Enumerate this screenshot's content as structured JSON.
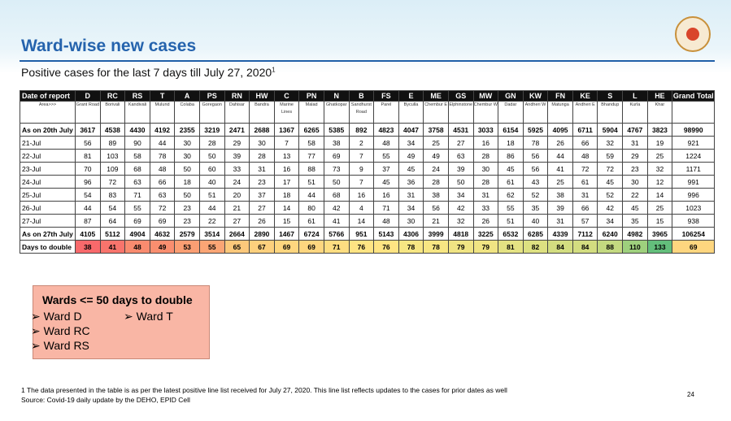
{
  "title": "Ward-wise new cases",
  "subtitle": "Positive cases for the last 7 days till July 27, 2020",
  "subtitle_note": "1",
  "table": {
    "header": [
      "Date of report",
      "D",
      "RC",
      "RS",
      "T",
      "A",
      "PS",
      "RN",
      "HW",
      "C",
      "PN",
      "N",
      "B",
      "FS",
      "E",
      "ME",
      "GS",
      "MW",
      "GN",
      "KW",
      "FN",
      "KE",
      "S",
      "L",
      "HE",
      "Grand Total"
    ],
    "areas": [
      "Area>>>",
      "Grant Road",
      "Borivali",
      "Kandivali",
      "Mulund",
      "Colaba",
      "Goregaon",
      "Dahisar",
      "Bandra",
      "Marine Lines",
      "Malad",
      "Ghatkopar",
      "Sandhurst Road",
      "Parel",
      "Byculla",
      "Chembur E",
      "Elphinstone",
      "Chembur W",
      "Dadar",
      "Andheri W",
      "Matunga",
      "Andheri E",
      "Bhandup",
      "Kurla",
      "Khar"
    ],
    "rows": [
      {
        "label": "As on 20th July",
        "values": [
          3617,
          4538,
          4430,
          4192,
          2355,
          3219,
          2471,
          2688,
          1367,
          6265,
          5385,
          892,
          4823,
          4047,
          3758,
          4531,
          3033,
          6154,
          5925,
          4095,
          6711,
          5904,
          4767,
          3823,
          98990
        ]
      },
      {
        "label": "21-Jul",
        "values": [
          56,
          89,
          90,
          44,
          30,
          28,
          29,
          30,
          7,
          58,
          38,
          2,
          48,
          34,
          25,
          27,
          16,
          18,
          78,
          26,
          66,
          32,
          31,
          19,
          921
        ]
      },
      {
        "label": "22-Jul",
        "values": [
          81,
          103,
          58,
          78,
          30,
          50,
          39,
          28,
          13,
          77,
          69,
          7,
          55,
          49,
          49,
          63,
          28,
          86,
          56,
          44,
          48,
          59,
          29,
          25,
          1224
        ]
      },
      {
        "label": "23-Jul",
        "values": [
          70,
          109,
          68,
          48,
          50,
          60,
          33,
          31,
          16,
          88,
          73,
          9,
          37,
          45,
          24,
          39,
          30,
          45,
          56,
          41,
          72,
          72,
          23,
          32,
          1171
        ]
      },
      {
        "label": "24-Jul",
        "values": [
          96,
          72,
          63,
          66,
          18,
          40,
          24,
          23,
          17,
          51,
          50,
          7,
          45,
          36,
          28,
          50,
          28,
          61,
          43,
          25,
          61,
          45,
          30,
          12,
          991
        ]
      },
      {
        "label": "25-Jul",
        "values": [
          54,
          83,
          71,
          63,
          50,
          51,
          20,
          37,
          18,
          44,
          68,
          16,
          16,
          31,
          38,
          34,
          31,
          62,
          52,
          38,
          31,
          52,
          22,
          14,
          996
        ]
      },
      {
        "label": "26-Jul",
        "values": [
          44,
          54,
          55,
          72,
          23,
          44,
          21,
          27,
          14,
          80,
          42,
          4,
          71,
          34,
          56,
          42,
          33,
          55,
          35,
          39,
          66,
          42,
          45,
          25,
          1023
        ]
      },
      {
        "label": "27-Jul",
        "values": [
          87,
          64,
          69,
          69,
          23,
          22,
          27,
          26,
          15,
          61,
          41,
          14,
          48,
          30,
          21,
          32,
          26,
          51,
          40,
          31,
          57,
          34,
          35,
          15,
          938
        ]
      },
      {
        "label": "As on 27th July",
        "values": [
          4105,
          5112,
          4904,
          4632,
          2579,
          3514,
          2664,
          2890,
          1467,
          6724,
          5766,
          951,
          5143,
          4306,
          3999,
          4818,
          3225,
          6532,
          6285,
          4339,
          7112,
          6240,
          4982,
          3965,
          106254
        ]
      },
      {
        "label": "Days to double",
        "values": [
          38,
          41,
          48,
          49,
          53,
          55,
          65,
          67,
          69,
          69,
          71,
          76,
          76,
          78,
          78,
          79,
          79,
          81,
          82,
          84,
          84,
          88,
          110,
          133,
          69
        ],
        "colors": [
          "#f8696b",
          "#f8746c",
          "#f98b6f",
          "#f98e6f",
          "#fa9e73",
          "#fba575",
          "#fcc87b",
          "#fdd07d",
          "#fed67f",
          "#fed67f",
          "#fedd81",
          "#ffe483",
          "#ffe483",
          "#f7e683",
          "#f7e683",
          "#f0e483",
          "#f0e483",
          "#e4e283",
          "#dde081",
          "#d3dd80",
          "#d3dd80",
          "#c3d980",
          "#9ed07d",
          "#63be7b",
          "#fed67f"
        ]
      }
    ]
  },
  "box": {
    "title": "Wards <= 50 days to double",
    "items": [
      "Ward D",
      "Ward RC",
      "Ward RS",
      "Ward T"
    ]
  },
  "footnote": "1 The data presented in the table is as per the latest positive line list received for July 27, 2020. This line list reflects updates to the cases for prior dates as well",
  "source": "Source: Covid-19 daily update by the DEHO, EPID Cell",
  "page_number": "24"
}
